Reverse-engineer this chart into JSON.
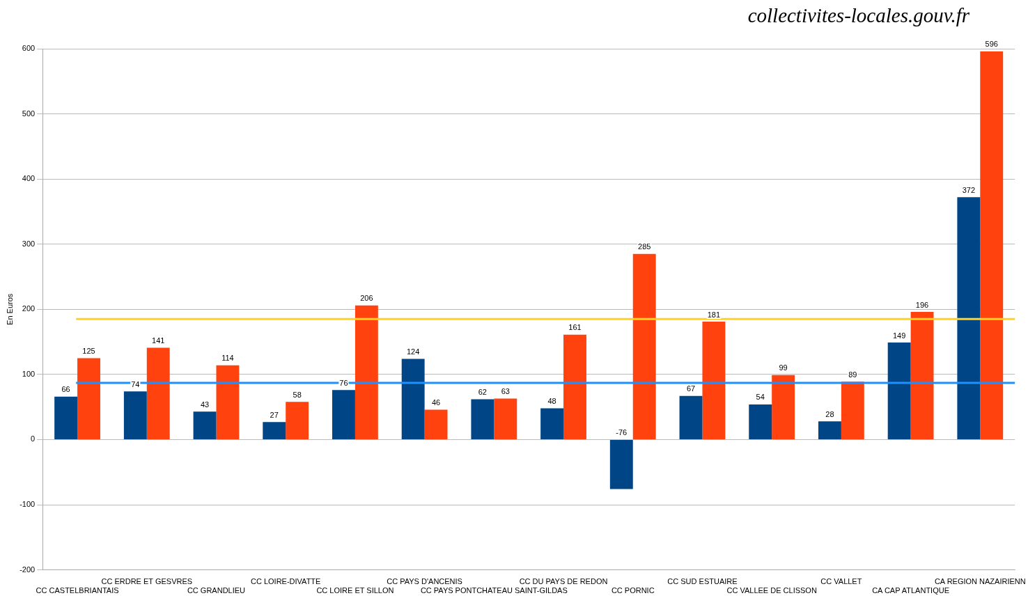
{
  "chart_data": {
    "type": "bar",
    "ylabel": "En Euros",
    "categories": [
      "CC CASTELBRIANTAIS",
      "CC ERDRE ET GESVRES",
      "CC GRANDLIEU",
      "CC LOIRE-DIVATTE",
      "CC LOIRE ET SILLON",
      "CC PAYS D'ANCENIS",
      "CC PAYS PONTCHATEAU SAINT-GILDAS",
      "CC DU PAYS DE REDON",
      "CC PORNIC",
      "CC SUD ESTUAIRE",
      "CC VALLEE DE CLISSON",
      "CC VALLET",
      "CA CAP ATLANTIQUE",
      "CA REGION NAZAIRIENN"
    ],
    "series": [
      {
        "color": "#004586",
        "values": [
          66,
          74,
          43,
          27,
          76,
          124,
          62,
          48,
          -76,
          67,
          54,
          28,
          149,
          372
        ]
      },
      {
        "color": "#ff420e",
        "values": [
          125,
          141,
          114,
          58,
          206,
          46,
          63,
          161,
          285,
          181,
          99,
          89,
          196,
          596
        ]
      }
    ],
    "ylim": [
      -200,
      600
    ],
    "yticks": [
      -200,
      -100,
      0,
      100,
      200,
      300,
      400,
      500,
      600
    ],
    "grid": "y",
    "legend": false,
    "data_labels": true,
    "ref_lines": [
      {
        "axis": "y",
        "value": 185,
        "color": "#ffd320"
      },
      {
        "axis": "y",
        "value": 87,
        "color": "#1e90ff"
      }
    ],
    "annotations": [
      "collectivites-locales.gouv.fr"
    ]
  }
}
